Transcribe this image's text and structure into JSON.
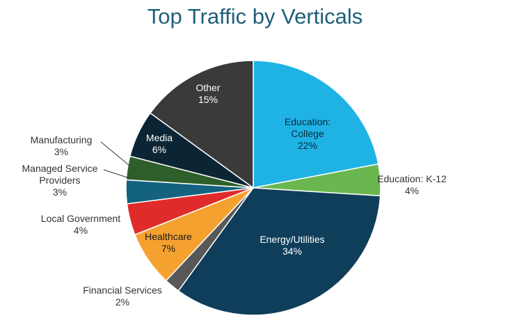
{
  "chart_data": {
    "type": "pie",
    "title": "Top Traffic by Verticals",
    "slices": [
      {
        "name": "Education: College",
        "value": 22,
        "label": "22%",
        "color": "#1fb3e5"
      },
      {
        "name": "Education: K-12",
        "value": 4,
        "label": "4%",
        "color": "#6ab750"
      },
      {
        "name": "Energy/Utilities",
        "value": 34,
        "label": "34%",
        "color": "#0f3e5a"
      },
      {
        "name": "Financial Services",
        "value": 2,
        "label": "2%",
        "color": "#585858"
      },
      {
        "name": "Healthcare",
        "value": 7,
        "label": "7%",
        "color": "#f5a130"
      },
      {
        "name": "Local Government",
        "value": 4,
        "label": "4%",
        "color": "#e02b2b"
      },
      {
        "name": "Managed Service Providers",
        "value": 3,
        "label": "3%",
        "color": "#13627f"
      },
      {
        "name": "Manufacturing",
        "value": 3,
        "label": "3%",
        "color": "#2e5f2a"
      },
      {
        "name": "Media",
        "value": 6,
        "label": "6%",
        "color": "#0c2535"
      },
      {
        "name": "Other",
        "value": 15,
        "label": "15%",
        "color": "#3a3a3a"
      }
    ]
  }
}
